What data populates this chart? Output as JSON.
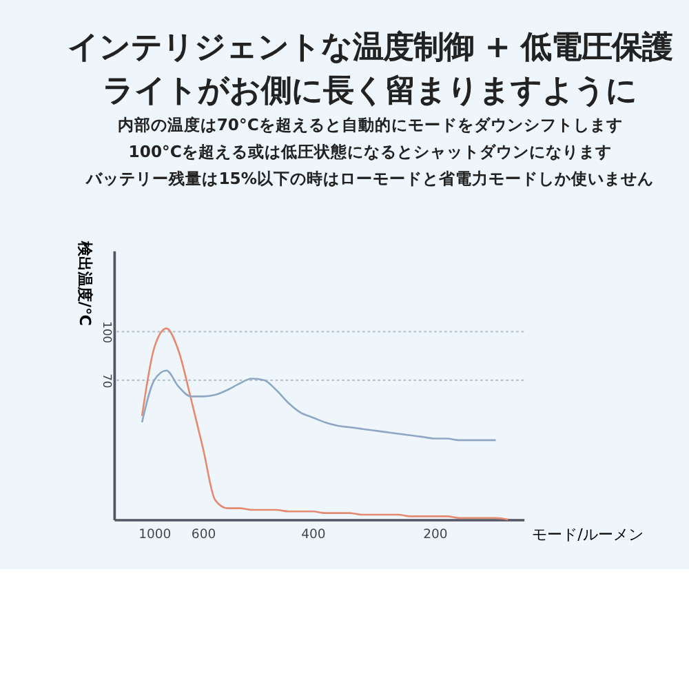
{
  "chart_data": {
    "type": "line",
    "title": "インテリジェントな温度制御 + 低電圧保護",
    "subtitle": "ライトがお側に長く留まりますように",
    "annotations": [
      "内部の温度は70°Cを超えると自動的にモードをダウンシフトします",
      "100°Cを超える或は低圧状態になるとシャットダウンになります",
      "バッテリー残量は15%以下の時はローモードと省電力モードしか使いません"
    ],
    "xlabel": "モード/ルーメン",
    "ylabel": "検出温度/℃",
    "categories": [
      null,
      null,
      null,
      "1000",
      null,
      null,
      null,
      "600",
      null,
      null,
      null,
      null,
      null,
      null,
      null,
      null,
      "400",
      null,
      null,
      null,
      null,
      null,
      null,
      null,
      null,
      null,
      "200",
      null,
      null,
      null,
      null,
      null,
      null,
      null
    ],
    "ylim": [
      -16,
      150
    ],
    "yticks": [
      70,
      100
    ],
    "grid": false,
    "line_style": "solid",
    "marker": "none",
    "ref_lines": [
      {
        "axis": "y",
        "value": 100,
        "line_style": "dotted",
        "color": "#b8c4d0"
      },
      {
        "axis": "y",
        "value": 70,
        "line_style": "dotted",
        "color": "#b8c4d0"
      }
    ],
    "series": [
      {
        "color": "#e48a70",
        "values": [
          null,
          null,
          48,
          90,
          102,
          88,
          59,
          28,
          -4,
          -9,
          -9,
          -10,
          -10,
          -10,
          -11,
          -11,
          -11,
          -12,
          -12,
          -12,
          -13,
          -13,
          -13,
          -13,
          -14,
          -14,
          -14,
          -14,
          -15,
          -15,
          -15,
          -15,
          -16,
          null
        ]
      },
      {
        "color": "#8fa6c4",
        "values": [
          null,
          null,
          44,
          70,
          76,
          66,
          60,
          60,
          61,
          64,
          68,
          71,
          70,
          64,
          56,
          50,
          47,
          44,
          42,
          41,
          40,
          39,
          38,
          37,
          36,
          35,
          34,
          34,
          33,
          33,
          33,
          33,
          null,
          null
        ]
      }
    ]
  }
}
